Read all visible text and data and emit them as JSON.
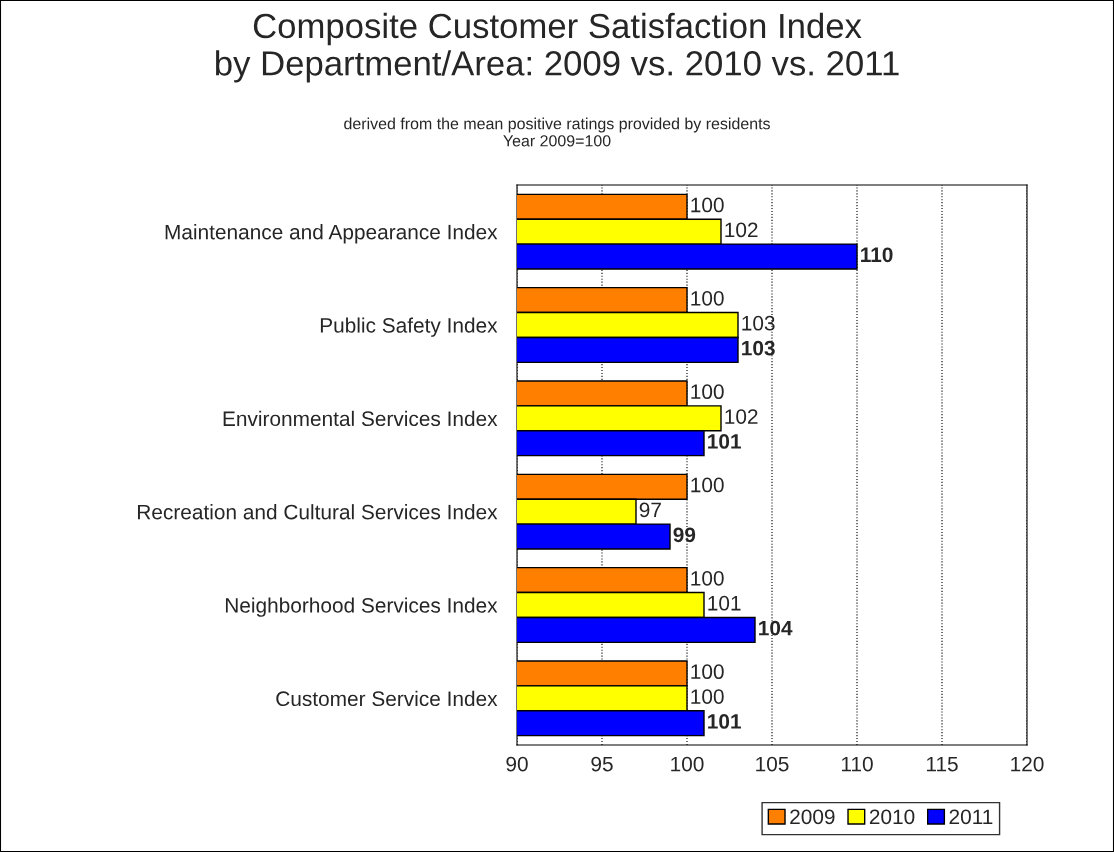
{
  "chart_data": {
    "type": "bar",
    "orientation": "horizontal",
    "title": "Composite Customer Satisfaction Index\nby Department/Area: 2009 vs. 2010 vs. 2011",
    "subtitle": "derived from the mean positive ratings provided by residents\nYear 2009=100",
    "categories": [
      "Maintenance and Appearance Index",
      "Public Safety Index",
      "Environmental Services Index",
      "Recreation and Cultural Services Index",
      "Neighborhood Services Index",
      "Customer Service Index"
    ],
    "series": [
      {
        "name": "2009",
        "color": "#ff7f00",
        "values": [
          100,
          100,
          100,
          100,
          100,
          100
        ]
      },
      {
        "name": "2010",
        "color": "#ffff00",
        "values": [
          102,
          103,
          102,
          97,
          101,
          100
        ]
      },
      {
        "name": "2011",
        "color": "#0000ff",
        "values": [
          110,
          103,
          101,
          99,
          104,
          101
        ]
      }
    ],
    "xlim": [
      90,
      120
    ],
    "xticks": [
      90,
      95,
      100,
      105,
      110,
      115,
      120
    ],
    "grid": "x",
    "line_style": "dotted",
    "legend": "bottom right",
    "data_labels": true
  }
}
